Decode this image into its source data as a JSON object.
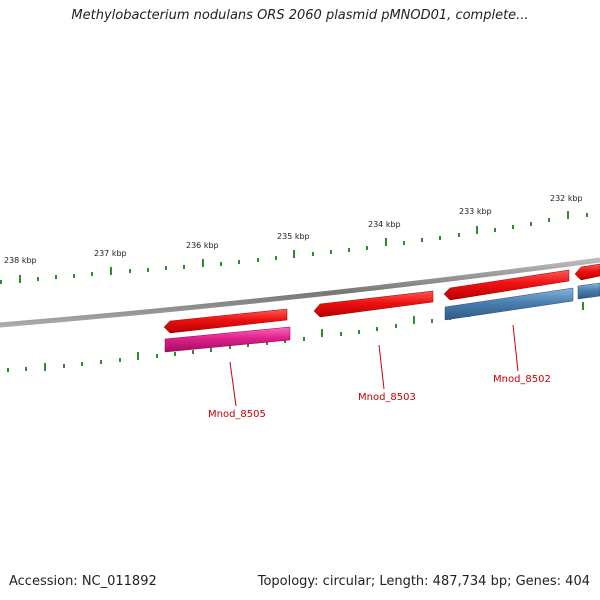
{
  "title": "Methylobacterium nodulans ORS 2060 plasmid pMNOD01, complete...",
  "footer": {
    "accession": "Accession: NC_011892",
    "summary": "Topology: circular; Length: 487,734 bp; Genes: 404"
  },
  "scale_labels": [
    "238 kbp",
    "237 kbp",
    "236 kbp",
    "235 kbp",
    "234 kbp",
    "233 kbp",
    "232 kbp"
  ],
  "gene_labels": [
    "Mnod_8505",
    "Mnod_8503",
    "Mnod_8502"
  ],
  "colors": {
    "backbone": "#888888",
    "tick": "#2e8b2e",
    "gene_forward": "#e8101a",
    "gene_pink": "#e0208a",
    "gene_blue": "#4a7fb0",
    "label": "#cc0000"
  }
}
